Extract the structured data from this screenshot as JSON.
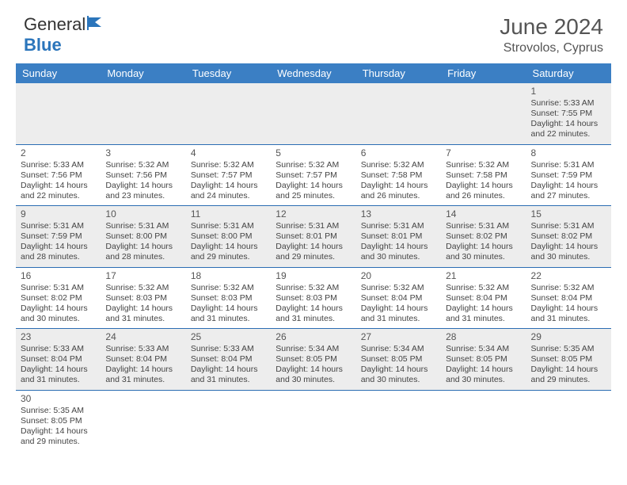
{
  "brand": {
    "name_part1": "General",
    "name_part2": "Blue"
  },
  "title": "June 2024",
  "location": "Strovolos, Cyprus",
  "colors": {
    "header_bg": "#3b7fc4",
    "header_text": "#ffffff",
    "row_alt_bg": "#ededed",
    "border": "#2b6db3",
    "brand_blue": "#2b75bb"
  },
  "day_headers": [
    "Sunday",
    "Monday",
    "Tuesday",
    "Wednesday",
    "Thursday",
    "Friday",
    "Saturday"
  ],
  "weeks": [
    [
      null,
      null,
      null,
      null,
      null,
      null,
      {
        "day": 1,
        "sunrise": "5:33 AM",
        "sunset": "7:55 PM",
        "daylight": "14 hours and 22 minutes."
      }
    ],
    [
      {
        "day": 2,
        "sunrise": "5:33 AM",
        "sunset": "7:56 PM",
        "daylight": "14 hours and 22 minutes."
      },
      {
        "day": 3,
        "sunrise": "5:32 AM",
        "sunset": "7:56 PM",
        "daylight": "14 hours and 23 minutes."
      },
      {
        "day": 4,
        "sunrise": "5:32 AM",
        "sunset": "7:57 PM",
        "daylight": "14 hours and 24 minutes."
      },
      {
        "day": 5,
        "sunrise": "5:32 AM",
        "sunset": "7:57 PM",
        "daylight": "14 hours and 25 minutes."
      },
      {
        "day": 6,
        "sunrise": "5:32 AM",
        "sunset": "7:58 PM",
        "daylight": "14 hours and 26 minutes."
      },
      {
        "day": 7,
        "sunrise": "5:32 AM",
        "sunset": "7:58 PM",
        "daylight": "14 hours and 26 minutes."
      },
      {
        "day": 8,
        "sunrise": "5:31 AM",
        "sunset": "7:59 PM",
        "daylight": "14 hours and 27 minutes."
      }
    ],
    [
      {
        "day": 9,
        "sunrise": "5:31 AM",
        "sunset": "7:59 PM",
        "daylight": "14 hours and 28 minutes."
      },
      {
        "day": 10,
        "sunrise": "5:31 AM",
        "sunset": "8:00 PM",
        "daylight": "14 hours and 28 minutes."
      },
      {
        "day": 11,
        "sunrise": "5:31 AM",
        "sunset": "8:00 PM",
        "daylight": "14 hours and 29 minutes."
      },
      {
        "day": 12,
        "sunrise": "5:31 AM",
        "sunset": "8:01 PM",
        "daylight": "14 hours and 29 minutes."
      },
      {
        "day": 13,
        "sunrise": "5:31 AM",
        "sunset": "8:01 PM",
        "daylight": "14 hours and 30 minutes."
      },
      {
        "day": 14,
        "sunrise": "5:31 AM",
        "sunset": "8:02 PM",
        "daylight": "14 hours and 30 minutes."
      },
      {
        "day": 15,
        "sunrise": "5:31 AM",
        "sunset": "8:02 PM",
        "daylight": "14 hours and 30 minutes."
      }
    ],
    [
      {
        "day": 16,
        "sunrise": "5:31 AM",
        "sunset": "8:02 PM",
        "daylight": "14 hours and 30 minutes."
      },
      {
        "day": 17,
        "sunrise": "5:32 AM",
        "sunset": "8:03 PM",
        "daylight": "14 hours and 31 minutes."
      },
      {
        "day": 18,
        "sunrise": "5:32 AM",
        "sunset": "8:03 PM",
        "daylight": "14 hours and 31 minutes."
      },
      {
        "day": 19,
        "sunrise": "5:32 AM",
        "sunset": "8:03 PM",
        "daylight": "14 hours and 31 minutes."
      },
      {
        "day": 20,
        "sunrise": "5:32 AM",
        "sunset": "8:04 PM",
        "daylight": "14 hours and 31 minutes."
      },
      {
        "day": 21,
        "sunrise": "5:32 AM",
        "sunset": "8:04 PM",
        "daylight": "14 hours and 31 minutes."
      },
      {
        "day": 22,
        "sunrise": "5:32 AM",
        "sunset": "8:04 PM",
        "daylight": "14 hours and 31 minutes."
      }
    ],
    [
      {
        "day": 23,
        "sunrise": "5:33 AM",
        "sunset": "8:04 PM",
        "daylight": "14 hours and 31 minutes."
      },
      {
        "day": 24,
        "sunrise": "5:33 AM",
        "sunset": "8:04 PM",
        "daylight": "14 hours and 31 minutes."
      },
      {
        "day": 25,
        "sunrise": "5:33 AM",
        "sunset": "8:04 PM",
        "daylight": "14 hours and 31 minutes."
      },
      {
        "day": 26,
        "sunrise": "5:34 AM",
        "sunset": "8:05 PM",
        "daylight": "14 hours and 30 minutes."
      },
      {
        "day": 27,
        "sunrise": "5:34 AM",
        "sunset": "8:05 PM",
        "daylight": "14 hours and 30 minutes."
      },
      {
        "day": 28,
        "sunrise": "5:34 AM",
        "sunset": "8:05 PM",
        "daylight": "14 hours and 30 minutes."
      },
      {
        "day": 29,
        "sunrise": "5:35 AM",
        "sunset": "8:05 PM",
        "daylight": "14 hours and 29 minutes."
      }
    ],
    [
      {
        "day": 30,
        "sunrise": "5:35 AM",
        "sunset": "8:05 PM",
        "daylight": "14 hours and 29 minutes."
      },
      null,
      null,
      null,
      null,
      null,
      null
    ]
  ]
}
